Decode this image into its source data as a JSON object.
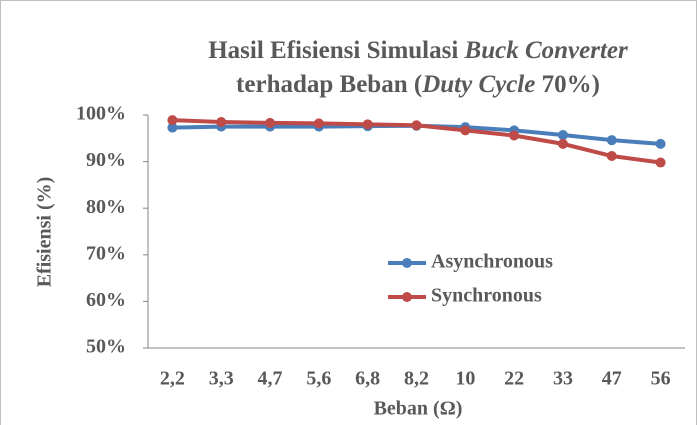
{
  "chart_data": {
    "type": "line",
    "title": [
      [
        "Hasil Efisiensi Simulasi ",
        "Buck Converter"
      ],
      [
        "terhadap Beban (",
        "Duty Cycle",
        " 70%)"
      ]
    ],
    "x_label": "Beban (Ω)",
    "y_label": "Efisiensi (%)",
    "categories": [
      "2,2",
      "3,3",
      "4,7",
      "5,6",
      "6,8",
      "8,2",
      "10",
      "22",
      "33",
      "47",
      "56"
    ],
    "series": [
      {
        "name": "Asynchronous",
        "color": "#4a7ebb",
        "values": [
          97.3,
          97.5,
          97.5,
          97.5,
          97.6,
          97.7,
          97.4,
          96.7,
          95.7,
          94.6,
          93.8
        ]
      },
      {
        "name": "Synchronous",
        "color": "#be4b48",
        "values": [
          98.9,
          98.5,
          98.3,
          98.2,
          98.0,
          97.8,
          96.7,
          95.6,
          93.8,
          91.2,
          89.8
        ]
      }
    ],
    "ylim": [
      50,
      100
    ],
    "yticks": [
      {
        "value": 50,
        "label": "50%"
      },
      {
        "value": 60,
        "label": "60%"
      },
      {
        "value": 70,
        "label": "70%"
      },
      {
        "value": 80,
        "label": "80%"
      },
      {
        "value": 90,
        "label": "90%"
      },
      {
        "value": 100,
        "label": "100%"
      }
    ],
    "grid": false
  }
}
